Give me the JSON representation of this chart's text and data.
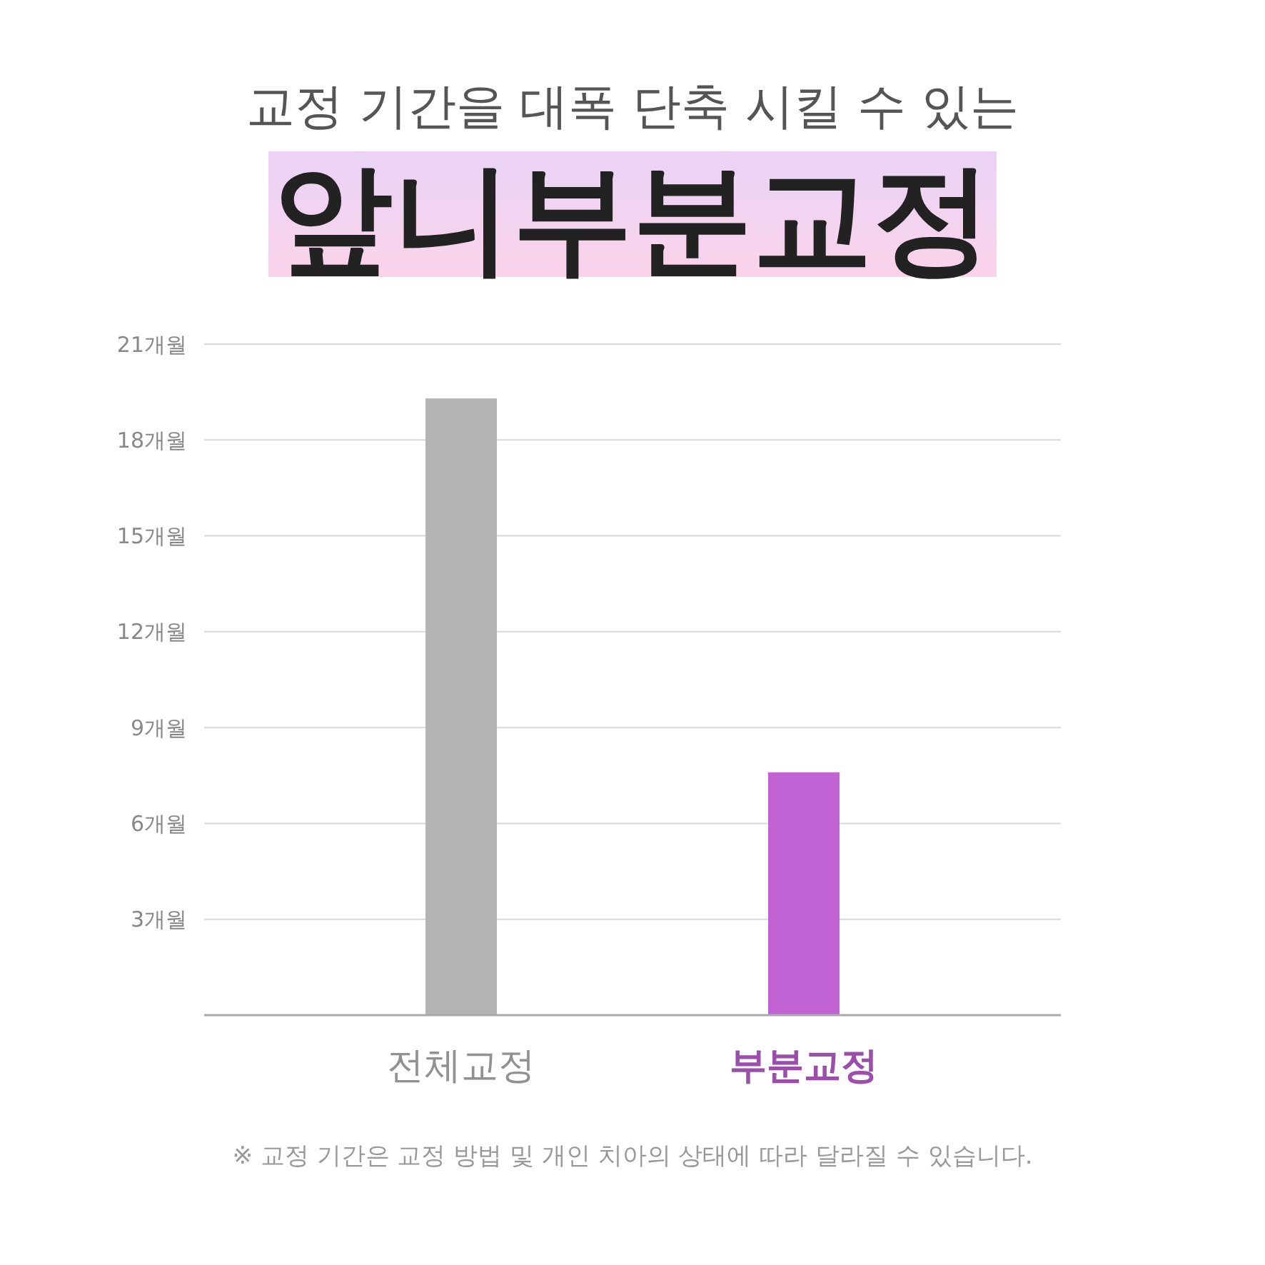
{
  "chart_data": {
    "type": "bar",
    "title": "교정 기간을 대폭 단축 시킬 수 있는",
    "subtitle": "앞니부분교정",
    "categories": [
      "전체교정",
      "부분교정"
    ],
    "values": [
      19.3,
      7.6
    ],
    "colors": [
      "#b4b4b4",
      "#c062d4"
    ],
    "ylim": [
      0,
      21
    ],
    "yticks": [
      {
        "value": 3,
        "label": "3개월"
      },
      {
        "value": 6,
        "label": "6개월"
      },
      {
        "value": 9,
        "label": "9개월"
      },
      {
        "value": 12,
        "label": "12개월"
      },
      {
        "value": 15,
        "label": "15개월"
      },
      {
        "value": 18,
        "label": "18개월"
      },
      {
        "value": 21,
        "label": "21개월"
      }
    ],
    "grid": "y",
    "annotations": [
      "※ 교정 기간은 교정 방법 및 개인 치아의 상태에 따라 달라질 수 있습니다."
    ]
  }
}
